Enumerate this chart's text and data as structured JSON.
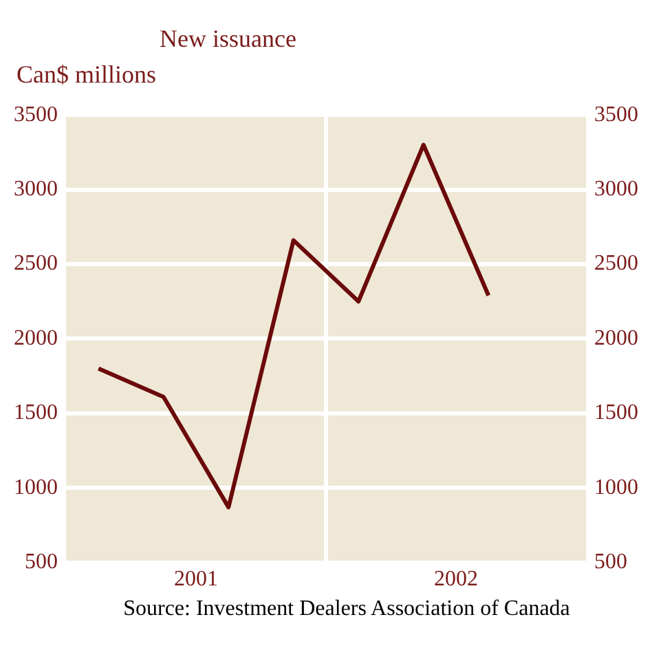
{
  "chart_data": {
    "type": "line",
    "title": "New issuance",
    "ylabel": "Can$ millions",
    "annotations": [
      "Source: Investment Dealers Association of Canada"
    ],
    "x": [
      2001.125,
      2001.375,
      2001.625,
      2001.875,
      2002.125,
      2002.375,
      2002.625
    ],
    "series": [
      {
        "color": "#6b0a0a",
        "values": [
          1800,
          1610,
          870,
          2660,
          2250,
          3300,
          2290
        ]
      }
    ],
    "xlim": [
      2001,
      2003
    ],
    "xticks": [
      {
        "value": 2001.5,
        "label": "2001"
      },
      {
        "value": 2002,
        "label": null
      },
      {
        "value": 2002.5,
        "label": "2002"
      }
    ],
    "ylim": [
      500,
      3500
    ],
    "yticks": [
      500,
      1000,
      1500,
      2000,
      2500,
      3000,
      3500
    ],
    "y2lim": [
      500,
      3500
    ],
    "y2ticks": [
      500,
      1000,
      1500,
      2000,
      2500,
      3000,
      3500
    ],
    "grid": true,
    "legend": false,
    "marker": "none",
    "line_style": "solid"
  }
}
